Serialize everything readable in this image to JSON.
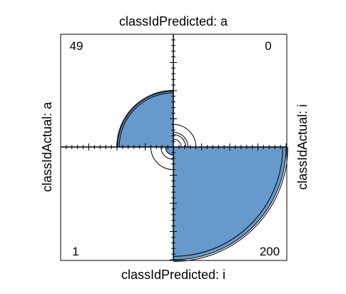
{
  "chart_data": {
    "type": "fourfold",
    "labels": {
      "top": "classIdPredicted: a",
      "bottom": "classIdPredicted: i",
      "left": "classIdActual: a",
      "right": "classIdActual: i"
    },
    "cells": [
      {
        "actual": "a",
        "predicted": "a",
        "count": 49,
        "quadrant": "top-left"
      },
      {
        "actual": "i",
        "predicted": "a",
        "count": 0,
        "quadrant": "top-right"
      },
      {
        "actual": "a",
        "predicted": "i",
        "count": 1,
        "quadrant": "bottom-left"
      },
      {
        "actual": "i",
        "predicted": "i",
        "count": 200,
        "quadrant": "bottom-right"
      }
    ],
    "fill_color": "#6699cc",
    "outline_color": "#000000"
  }
}
